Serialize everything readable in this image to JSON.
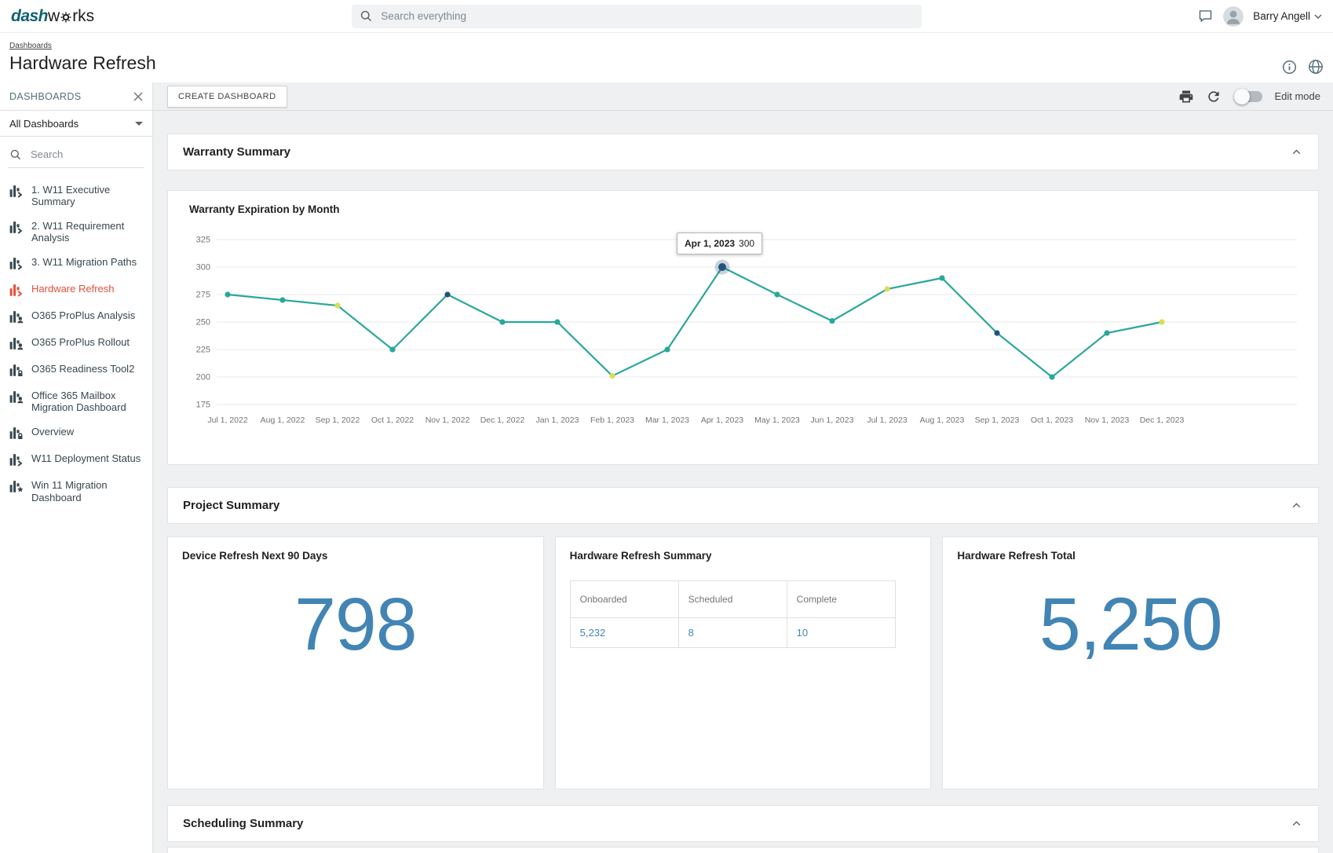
{
  "topbar": {
    "logo_dash": "dash",
    "logo_w": "w",
    "logo_rks": "rks",
    "search_placeholder": "Search everything",
    "user_name": "Barry Angell"
  },
  "breadcrumb": {
    "link": "Dashboards",
    "title": "Hardware Refresh"
  },
  "sidebar": {
    "header": "DASHBOARDS",
    "filter": "All Dashboards",
    "search_placeholder": "Search",
    "items": [
      {
        "label": "1. W11 Executive Summary",
        "icon": "chart-arrow",
        "active": false
      },
      {
        "label": "2. W11 Requirement Analysis",
        "icon": "chart-arrow",
        "active": false
      },
      {
        "label": "3. W11 Migration Paths",
        "icon": "chart-arrow",
        "active": false
      },
      {
        "label": "Hardware Refresh",
        "icon": "chart-arrow",
        "active": true
      },
      {
        "label": "O365 ProPlus Analysis",
        "icon": "chart-person",
        "active": false
      },
      {
        "label": "O365 ProPlus Rollout",
        "icon": "chart-person",
        "active": false
      },
      {
        "label": "O365 Readiness Tool2",
        "icon": "chart-lock",
        "active": false
      },
      {
        "label": "Office 365 Mailbox Migration Dashboard",
        "icon": "chart-person",
        "active": false
      },
      {
        "label": "Overview",
        "icon": "chart-lock",
        "active": false
      },
      {
        "label": "W11 Deployment Status",
        "icon": "chart-arrow",
        "active": false
      },
      {
        "label": "Win 11 Migration Dashboard",
        "icon": "chart-star",
        "active": false
      }
    ]
  },
  "toolbar": {
    "create_button": "CREATE DASHBOARD",
    "edit_mode_label": "Edit mode"
  },
  "panels": {
    "warranty": "Warranty Summary",
    "project": "Project Summary",
    "scheduling": "Scheduling Summary"
  },
  "cards": {
    "device": {
      "title": "Device Refresh Next 90 Days",
      "value": "798"
    },
    "summary": {
      "title": "Hardware Refresh Summary",
      "columns": [
        "Onboarded",
        "Scheduled",
        "Complete"
      ],
      "values": [
        "5,232",
        "8",
        "10"
      ]
    },
    "total": {
      "title": "Hardware Refresh Total",
      "value": "5,250"
    }
  },
  "chart_data": {
    "type": "line",
    "title": "Warranty Expiration by Month",
    "categories": [
      "Jul 1, 2022",
      "Aug 1, 2022",
      "Sep 1, 2022",
      "Oct 1, 2022",
      "Nov 1, 2022",
      "Dec 1, 2022",
      "Jan 1, 2023",
      "Feb 1, 2023",
      "Mar 1, 2023",
      "Apr 1, 2023",
      "May 1, 2023",
      "Jun 1, 2023",
      "Jul 1, 2023",
      "Aug 1, 2023",
      "Sep 1, 2023",
      "Oct 1, 2023",
      "Nov 1, 2023",
      "Dec 1, 2023"
    ],
    "values": [
      275,
      270,
      265,
      225,
      275,
      250,
      250,
      201,
      225,
      300,
      275,
      251,
      280,
      290,
      240,
      200,
      240,
      250
    ],
    "point_colors": [
      "#2aa79b",
      "#2aa79b",
      "#d9de54",
      "#2aa79b",
      "#27507c",
      "#2aa79b",
      "#2aa79b",
      "#d9de54",
      "#2aa79b",
      "#27507c",
      "#2aa79b",
      "#2aa79b",
      "#d9de54",
      "#2aa79b",
      "#27507c",
      "#2aa79b",
      "#2aa79b",
      "#d9de54"
    ],
    "line_color": "#2aa79b",
    "xlabel": "",
    "ylabel": "",
    "ylim": [
      175,
      325
    ],
    "yticks": [
      175,
      200,
      225,
      250,
      275,
      300,
      325
    ],
    "grid": true,
    "legend": false,
    "tooltip": {
      "label": "Apr 1, 2023",
      "value": "300",
      "index": 9
    }
  },
  "colors": {
    "accent_blue": "#4285b4",
    "active_item_red": "#e2503c",
    "line_teal": "#2aa79b",
    "point_yellow": "#d9de54",
    "point_navy": "#27507c",
    "background_gray": "#eef0f1"
  },
  "icons": [
    "gear-icon",
    "search-icon",
    "chat-icon",
    "avatar-icon",
    "chevron-down-icon",
    "info-icon",
    "globe-icon",
    "close-icon",
    "caret-down-icon",
    "printer-icon",
    "refresh-icon",
    "edit-mode-toggle",
    "chevron-up-icon",
    "dashboard-chart-icon",
    "person-badge-icon",
    "lock-badge-icon",
    "star-badge-icon",
    "arrow-badge-icon"
  ]
}
